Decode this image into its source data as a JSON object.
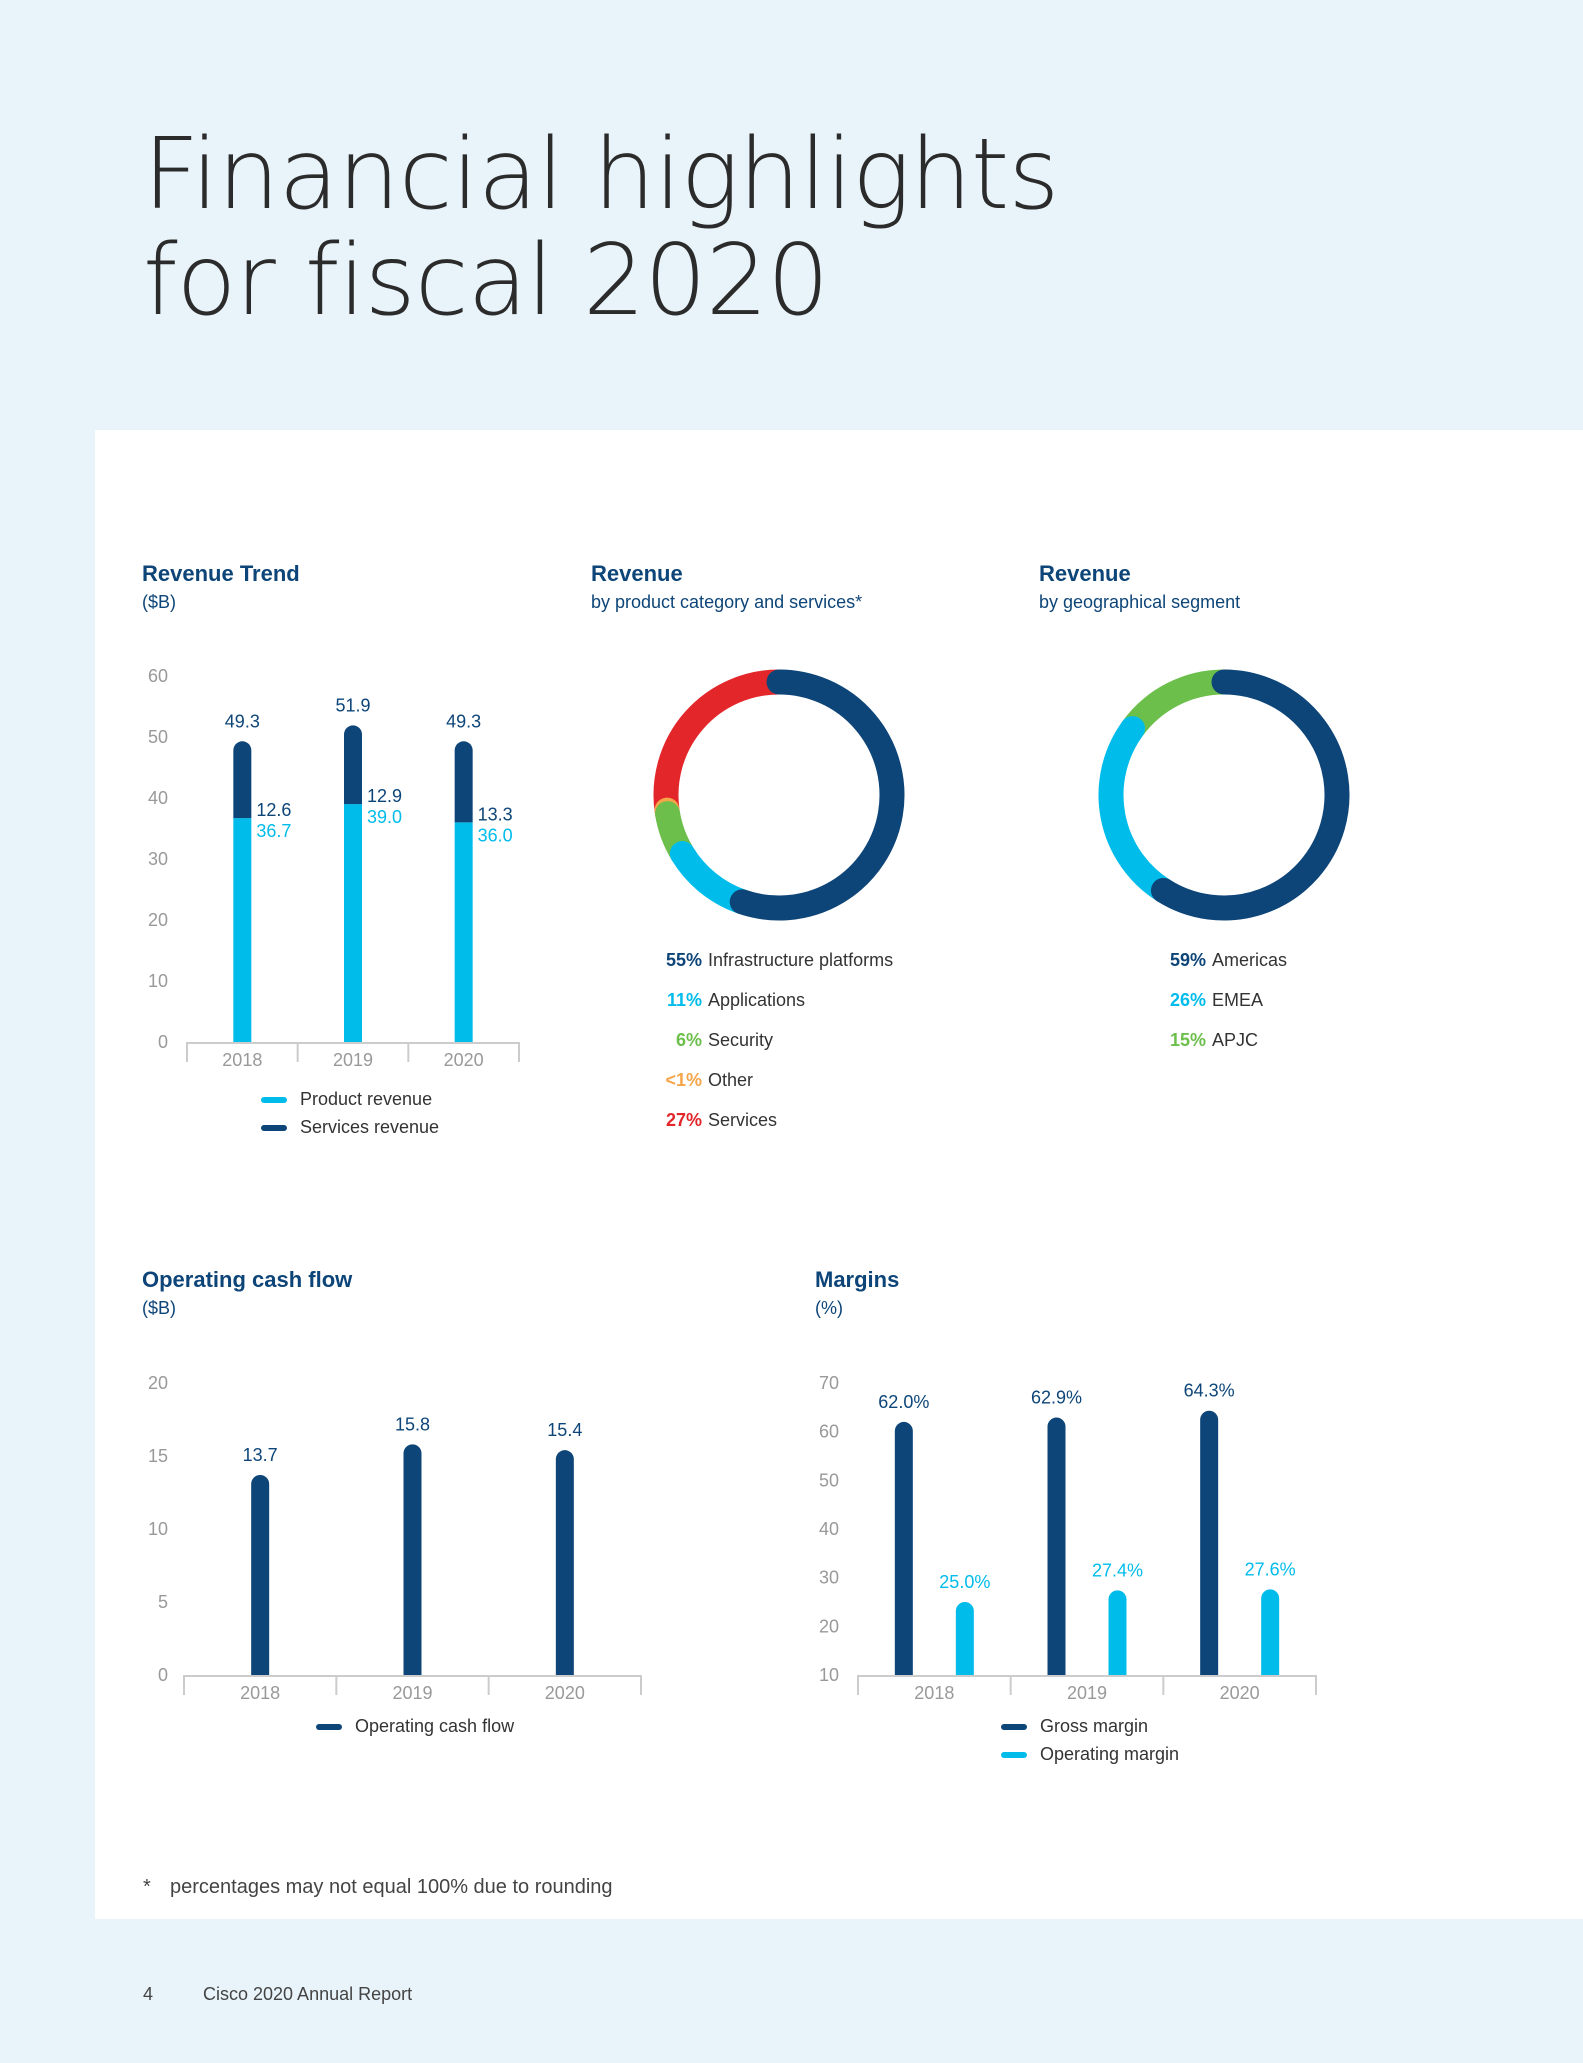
{
  "page": {
    "title_line1": "Financial highlights",
    "title_line2": "for fiscal 2020",
    "footnote_mark": "*",
    "footnote": "percentages may not equal 100% due to rounding",
    "page_number": "4",
    "footer_text": "Cisco 2020 Annual Report"
  },
  "colors": {
    "dark_blue": "#0d4578",
    "cyan": "#00bceb",
    "green": "#6cbf4b",
    "red": "#e3262a",
    "orange": "#f5a54a",
    "axis": "#999999"
  },
  "chart_data": [
    {
      "id": "revenue_trend",
      "type": "bar",
      "stacked": true,
      "title": "Revenue Trend",
      "subtitle": "($B)",
      "categories": [
        "2018",
        "2019",
        "2020"
      ],
      "yticks": [
        "0",
        "10",
        "20",
        "30",
        "40",
        "50",
        "60"
      ],
      "ylim": [
        0,
        60
      ],
      "series": [
        {
          "name": "Product revenue",
          "values": [
            36.7,
            39.0,
            36.0
          ],
          "labels": [
            "36.7",
            "39.0",
            "36.0"
          ],
          "color": "#00bceb"
        },
        {
          "name": "Services revenue",
          "values": [
            12.6,
            12.9,
            13.3
          ],
          "labels": [
            "12.6",
            "12.9",
            "13.3"
          ],
          "color": "#0d4578"
        }
      ],
      "totals": [
        "49.3",
        "51.9",
        "49.3"
      ],
      "legend": "bottom"
    },
    {
      "id": "revenue_by_product",
      "type": "pie",
      "donut": true,
      "title": "Revenue",
      "subtitle": "by product category and services*",
      "slices": [
        {
          "pct_label": "55%",
          "label": "Infrastructure platforms",
          "value": 55,
          "color": "#0d4578"
        },
        {
          "pct_label": "11%",
          "label": "Applications",
          "value": 11,
          "color": "#00bceb"
        },
        {
          "pct_label": "6%",
          "label": "Security",
          "value": 6,
          "color": "#6cbf4b"
        },
        {
          "pct_label": "<1%",
          "label": "Other",
          "value": 0.5,
          "color": "#f5a54a"
        },
        {
          "pct_label": "27%",
          "label": "Services",
          "value": 27,
          "color": "#e3262a"
        }
      ]
    },
    {
      "id": "revenue_by_geo",
      "type": "pie",
      "donut": true,
      "title": "Revenue",
      "subtitle": "by geographical segment",
      "slices": [
        {
          "pct_label": "59%",
          "label": "Americas",
          "value": 59,
          "color": "#0d4578"
        },
        {
          "pct_label": "26%",
          "label": "EMEA",
          "value": 26,
          "color": "#00bceb"
        },
        {
          "pct_label": "15%",
          "label": "APJC",
          "value": 15,
          "color": "#6cbf4b"
        }
      ]
    },
    {
      "id": "operating_cash_flow",
      "type": "bar",
      "title": "Operating cash flow",
      "subtitle": "($B)",
      "categories": [
        "2018",
        "2019",
        "2020"
      ],
      "yticks": [
        "0",
        "5",
        "10",
        "15",
        "20"
      ],
      "ylim": [
        0,
        20
      ],
      "series": [
        {
          "name": "Operating cash flow",
          "values": [
            13.7,
            15.8,
            15.4
          ],
          "labels": [
            "13.7",
            "15.8",
            "15.4"
          ],
          "color": "#0d4578"
        }
      ],
      "legend": "bottom"
    },
    {
      "id": "margins",
      "type": "bar",
      "title": "Margins",
      "subtitle": "(%)",
      "categories": [
        "2018",
        "2019",
        "2020"
      ],
      "yticks": [
        "10",
        "20",
        "30",
        "40",
        "50",
        "60",
        "70"
      ],
      "ylim": [
        10,
        70
      ],
      "series": [
        {
          "name": "Gross margin",
          "values": [
            62.0,
            62.9,
            64.3
          ],
          "labels": [
            "62.0%",
            "62.9%",
            "64.3%"
          ],
          "color": "#0d4578"
        },
        {
          "name": "Operating margin",
          "values": [
            25.0,
            27.4,
            27.6
          ],
          "labels": [
            "25.0%",
            "27.4%",
            "27.6%"
          ],
          "color": "#00bceb"
        }
      ],
      "legend": "bottom"
    }
  ]
}
